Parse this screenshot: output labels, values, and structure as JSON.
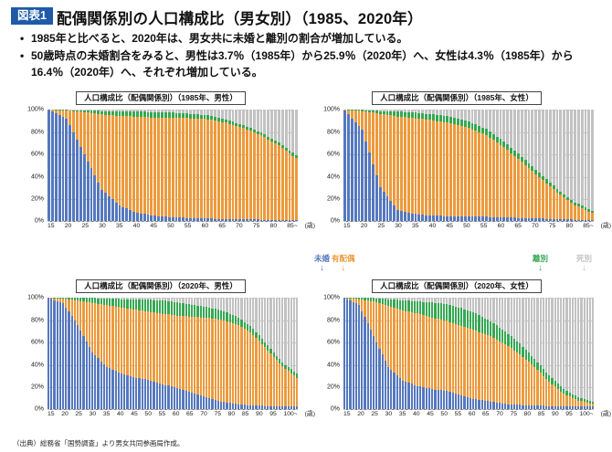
{
  "page": {
    "badge": "図表1",
    "title": "配偶関係別の人口構成比（男女別）（1985、2020年）",
    "bullets": [
      "1985年と比べると、2020年は、男女共に未婚と離別の割合が増加している。",
      "50歳時点の未婚割合をみると、男性は3.7％（1985年）から25.9％（2020年）へ、女性は4.3％（1985年）から16.4％（2020年）へ、それぞれ増加している。"
    ],
    "source": "（出典）総務省「国勢調査」より男女共同参画局作成。"
  },
  "legend": {
    "items": [
      {
        "label": "未婚",
        "color": "#5578BE"
      },
      {
        "label": "有配偶",
        "color": "#EC9A3C"
      },
      {
        "label": "離別",
        "color": "#35A853"
      },
      {
        "label": "死別",
        "color": "#C2C2C2"
      }
    ]
  },
  "chart_data": [
    {
      "type": "bar",
      "stacked": true,
      "title": "人口構成比（配偶関係別）（1985年、男性）",
      "x_start": 15,
      "x_end": 85,
      "x_unit": "(歳)",
      "x_ticks": [
        "15",
        "20",
        "25",
        "30",
        "35",
        "40",
        "45",
        "50",
        "55",
        "60",
        "65",
        "70",
        "75",
        "80",
        "85~"
      ],
      "y_ticks": [
        "100%",
        "80%",
        "60%",
        "40%",
        "20%",
        "0%"
      ],
      "ylim": [
        0,
        100
      ],
      "ages": [
        15,
        20,
        25,
        30,
        35,
        40,
        45,
        50,
        55,
        60,
        65,
        70,
        75,
        80,
        85
      ],
      "series": [
        {
          "name": "未婚",
          "values": [
            100,
            92,
            60,
            28,
            14,
            7.5,
            5,
            3.7,
            3,
            2.5,
            2,
            1.8,
            1.5,
            1.5,
            1.5
          ]
        },
        {
          "name": "有配偶",
          "values": [
            0,
            7,
            37.5,
            67,
            80,
            86.5,
            88,
            89,
            89.5,
            89,
            86.5,
            82,
            75.5,
            67,
            55
          ]
        },
        {
          "name": "離別",
          "values": [
            0,
            0.5,
            1.5,
            3,
            4,
            4.5,
            5,
            4.8,
            4,
            3.5,
            3,
            2.5,
            2.5,
            2.5,
            2.5
          ]
        },
        {
          "name": "死別",
          "values": [
            0,
            0,
            0.5,
            1,
            1.5,
            1.5,
            2,
            2.5,
            3.5,
            5,
            8.5,
            13.7,
            20.5,
            29,
            41
          ]
        }
      ]
    },
    {
      "type": "bar",
      "stacked": true,
      "title": "人口構成比（配偶関係別）（1985年、女性）",
      "x_start": 15,
      "x_end": 85,
      "x_unit": "(歳)",
      "x_ticks": [
        "15",
        "20",
        "25",
        "30",
        "35",
        "40",
        "45",
        "50",
        "55",
        "60",
        "65",
        "70",
        "75",
        "80",
        "85~"
      ],
      "y_ticks": [
        "100%",
        "80%",
        "60%",
        "40%",
        "20%",
        "0%"
      ],
      "ylim": [
        0,
        100
      ],
      "ages": [
        15,
        20,
        25,
        30,
        35,
        40,
        45,
        50,
        55,
        60,
        65,
        70,
        75,
        80,
        85
      ],
      "series": [
        {
          "name": "未婚",
          "values": [
            99.5,
            82,
            31,
            10,
            6.5,
            5,
            4.6,
            4.3,
            4,
            3.5,
            3,
            2.5,
            2,
            1.5,
            1
          ]
        },
        {
          "name": "有配偶",
          "values": [
            0.5,
            17,
            65.5,
            84,
            86,
            85.5,
            83.5,
            79.5,
            73.5,
            63,
            50.5,
            37,
            24,
            13,
            6.5
          ]
        },
        {
          "name": "離別",
          "values": [
            0,
            1,
            2.5,
            4.5,
            5,
            5.5,
            5.9,
            5.7,
            5.5,
            5,
            4.5,
            4,
            3,
            2.5,
            2
          ]
        },
        {
          "name": "死別",
          "values": [
            0,
            0,
            1,
            1.5,
            2.5,
            4,
            6,
            10.5,
            17,
            28.5,
            42,
            56.5,
            71,
            83,
            90.5
          ]
        }
      ]
    },
    {
      "type": "bar",
      "stacked": true,
      "title": "人口構成比（配偶関係別）（2020年、男性）",
      "x_start": 15,
      "x_end": 100,
      "x_unit": "(歳)",
      "x_ticks": [
        "15",
        "20",
        "25",
        "30",
        "35",
        "40",
        "45",
        "50",
        "55",
        "60",
        "65",
        "70",
        "75",
        "80",
        "85",
        "90",
        "95",
        "100~"
      ],
      "y_ticks": [
        "100%",
        "80%",
        "60%",
        "40%",
        "20%",
        "0%"
      ],
      "ylim": [
        0,
        100
      ],
      "ages": [
        15,
        20,
        25,
        30,
        35,
        40,
        45,
        50,
        55,
        60,
        65,
        70,
        75,
        80,
        85,
        90,
        95,
        100
      ],
      "series": [
        {
          "name": "未婚",
          "values": [
            100,
            95.5,
            76,
            51,
            38,
            32,
            28.5,
            25.9,
            22,
            18,
            14,
            10,
            6.5,
            4.5,
            3.5,
            3,
            2.5,
            2.5
          ]
        },
        {
          "name": "有配偶",
          "values": [
            0,
            4,
            21.5,
            44.5,
            55.5,
            59.5,
            61,
            61.5,
            63.5,
            66,
            69,
            72,
            73.5,
            71.5,
            63.5,
            50,
            36,
            26
          ]
        },
        {
          "name": "離別",
          "values": [
            0,
            0.5,
            2.5,
            4.5,
            6,
            7.5,
            9.5,
            11,
            12,
            11.5,
            10.5,
            9.5,
            8,
            6.5,
            5.5,
            4.5,
            3.5,
            3.5
          ]
        },
        {
          "name": "死別",
          "values": [
            0,
            0,
            0,
            0,
            0.5,
            1,
            1,
            1.6,
            2.5,
            4.5,
            6.5,
            8.5,
            12,
            17.5,
            27.5,
            42.5,
            58,
            68
          ]
        }
      ]
    },
    {
      "type": "bar",
      "stacked": true,
      "title": "人口構成比（配偶関係別）（2020年、女性）",
      "x_start": 15,
      "x_end": 100,
      "x_unit": "(歳)",
      "x_ticks": [
        "15",
        "20",
        "25",
        "30",
        "35",
        "40",
        "45",
        "50",
        "55",
        "60",
        "65",
        "70",
        "75",
        "80",
        "85",
        "90",
        "95",
        "100~"
      ],
      "y_ticks": [
        "100%",
        "80%",
        "60%",
        "40%",
        "20%",
        "0%"
      ],
      "ylim": [
        0,
        100
      ],
      "ages": [
        15,
        20,
        25,
        30,
        35,
        40,
        45,
        50,
        55,
        60,
        65,
        70,
        75,
        80,
        85,
        90,
        95,
        100
      ],
      "series": [
        {
          "name": "未婚",
          "values": [
            100,
            94,
            66,
            38,
            26,
            21,
            18.2,
            16.4,
            12.5,
            9,
            7,
            5,
            4,
            3.5,
            3,
            3,
            3,
            3
          ]
        },
        {
          "name": "有配偶",
          "values": [
            0,
            5,
            31,
            55,
            63,
            65,
            64,
            63,
            62.5,
            61.5,
            58.5,
            53.5,
            45.5,
            34.5,
            22,
            11,
            5,
            2
          ]
        },
        {
          "name": "離別",
          "values": [
            0,
            1,
            3,
            6,
            9,
            11,
            13.8,
            15,
            16,
            15.5,
            13.5,
            11.5,
            9.5,
            7.5,
            5.5,
            4,
            3,
            2
          ]
        },
        {
          "name": "死別",
          "values": [
            0,
            0,
            0,
            1,
            2,
            3,
            4,
            5.6,
            9,
            14,
            21,
            30,
            41,
            54.5,
            69.5,
            82,
            89,
            93
          ]
        }
      ]
    }
  ]
}
